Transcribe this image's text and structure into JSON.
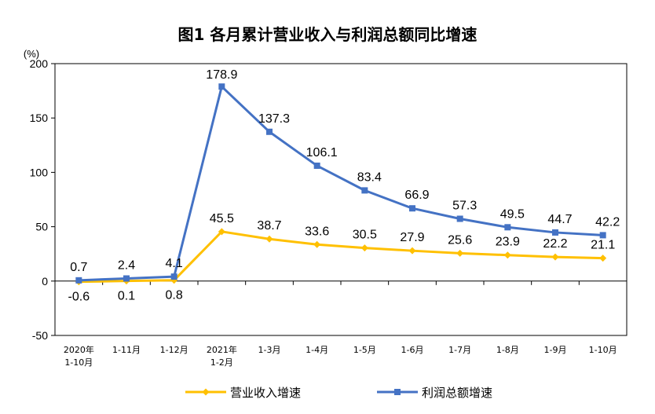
{
  "chart_data": {
    "type": "line",
    "title": "图1  各月累计营业收入与利润总额同比增速",
    "y_unit": "(%)",
    "ylim": [
      -50,
      200
    ],
    "yticks": [
      -50,
      0,
      50,
      100,
      150,
      200
    ],
    "categories": [
      [
        "2020年",
        "1-10月"
      ],
      [
        "1-11月"
      ],
      [
        "1-12月"
      ],
      [
        "2021年",
        "1-2月"
      ],
      [
        "1-3月"
      ],
      [
        "1-4月"
      ],
      [
        "1-5月"
      ],
      [
        "1-6月"
      ],
      [
        "1-7月"
      ],
      [
        "1-8月"
      ],
      [
        "1-9月"
      ],
      [
        "1-10月"
      ]
    ],
    "series": [
      {
        "name": "营业收入增速",
        "color": "#FFC000",
        "values": [
          -0.6,
          0.1,
          0.8,
          45.5,
          38.7,
          33.6,
          30.5,
          27.9,
          25.6,
          23.9,
          22.2,
          21.1
        ],
        "labels": [
          "-0.6",
          "0.1",
          "0.8",
          "45.5",
          "38.7",
          "33.6",
          "30.5",
          "27.9",
          "25.6",
          "23.9",
          "22.2",
          "21.1"
        ]
      },
      {
        "name": "利润总额增速",
        "color": "#4472C4",
        "values": [
          0.7,
          2.4,
          4.1,
          178.9,
          137.3,
          106.1,
          83.4,
          66.9,
          57.3,
          49.5,
          44.7,
          42.2
        ],
        "labels": [
          "0.7",
          "2.4",
          "4.1",
          "178.9",
          "137.3",
          "106.1",
          "83.4",
          "66.9",
          "57.3",
          "49.5",
          "44.7",
          "42.2"
        ]
      }
    ],
    "legend_position": "bottom",
    "grid": false
  }
}
